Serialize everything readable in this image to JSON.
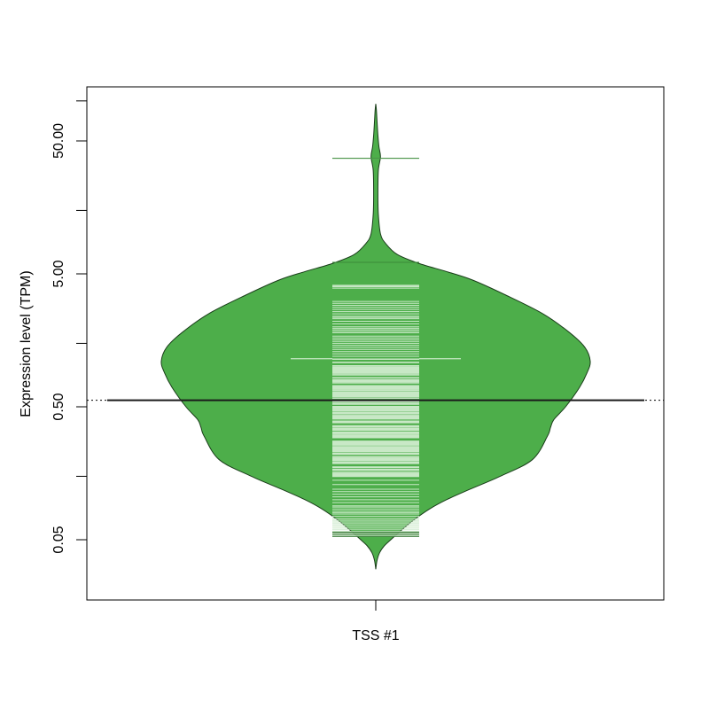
{
  "chart_data": {
    "type": "beanplot",
    "title": "",
    "xlabel": "",
    "ylabel": "Expression level (TPM)",
    "y_scale": "log10",
    "ylim": [
      0.02,
      120
    ],
    "y_ticks": [
      0.05,
      0.5,
      5,
      50
    ],
    "y_tick_labels": [
      "0.05",
      "0.50",
      "5.00",
      "50.00"
    ],
    "y_minor_ticks": [
      0.15,
      1.5,
      15,
      100
    ],
    "categories": [
      "TSS #1"
    ],
    "overall_mean": 0.56,
    "series": [
      {
        "name": "TSS #1",
        "fill_color": "#4dae4a",
        "border_color": "#1a3d1a",
        "line_color": "#c8e8c6",
        "mean": 0.56,
        "median_like_marker": 1.15,
        "max": 95,
        "min": 0.03,
        "density_profile": [
          [
            0.03,
            0.0
          ],
          [
            0.035,
            0.006
          ],
          [
            0.04,
            0.018
          ],
          [
            0.045,
            0.04
          ],
          [
            0.05,
            0.07
          ],
          [
            0.06,
            0.125
          ],
          [
            0.07,
            0.175
          ],
          [
            0.085,
            0.25
          ],
          [
            0.1,
            0.33
          ],
          [
            0.12,
            0.44
          ],
          [
            0.15,
            0.58
          ],
          [
            0.2,
            0.73
          ],
          [
            0.3,
            0.8
          ],
          [
            0.35,
            0.815
          ],
          [
            0.4,
            0.83
          ],
          [
            0.5,
            0.885
          ],
          [
            0.7,
            0.95
          ],
          [
            0.9,
            0.985
          ],
          [
            1.1,
            1.0
          ],
          [
            1.4,
            0.975
          ],
          [
            1.8,
            0.905
          ],
          [
            2.5,
            0.78
          ],
          [
            3.5,
            0.6
          ],
          [
            4.5,
            0.45
          ],
          [
            5.2,
            0.33
          ],
          [
            6,
            0.2
          ],
          [
            7,
            0.1
          ],
          [
            8.5,
            0.045
          ],
          [
            10,
            0.022
          ],
          [
            14,
            0.012
          ],
          [
            20,
            0.01
          ],
          [
            30,
            0.012
          ],
          [
            38,
            0.022
          ],
          [
            45,
            0.015
          ],
          [
            55,
            0.01
          ],
          [
            70,
            0.006
          ],
          [
            85,
            0.003
          ],
          [
            95,
            0.0
          ]
        ],
        "observations_high": [
          37,
          6.1,
          4.1,
          4.05,
          4.0,
          3.9,
          3.1,
          3.0,
          2.9,
          2.8,
          2.7,
          2.6,
          2.5,
          2.4,
          2.35,
          2.3,
          2.2,
          2.1,
          2.0,
          1.95,
          1.9,
          1.85,
          1.8,
          1.7,
          1.65,
          1.6,
          1.55,
          1.5,
          1.45,
          1.4,
          1.35,
          1.3,
          1.25,
          1.2
        ],
        "observations_low": [
          0.14,
          0.13,
          0.12,
          0.115,
          0.11,
          0.105,
          0.1,
          0.095,
          0.09,
          0.088,
          0.085,
          0.082,
          0.08,
          0.078,
          0.075,
          0.072,
          0.07,
          0.068,
          0.066,
          0.064,
          0.062,
          0.06,
          0.058,
          0.057,
          0.056,
          0.055,
          0.054,
          0.053
        ]
      }
    ],
    "grid": false,
    "legend": "none"
  }
}
